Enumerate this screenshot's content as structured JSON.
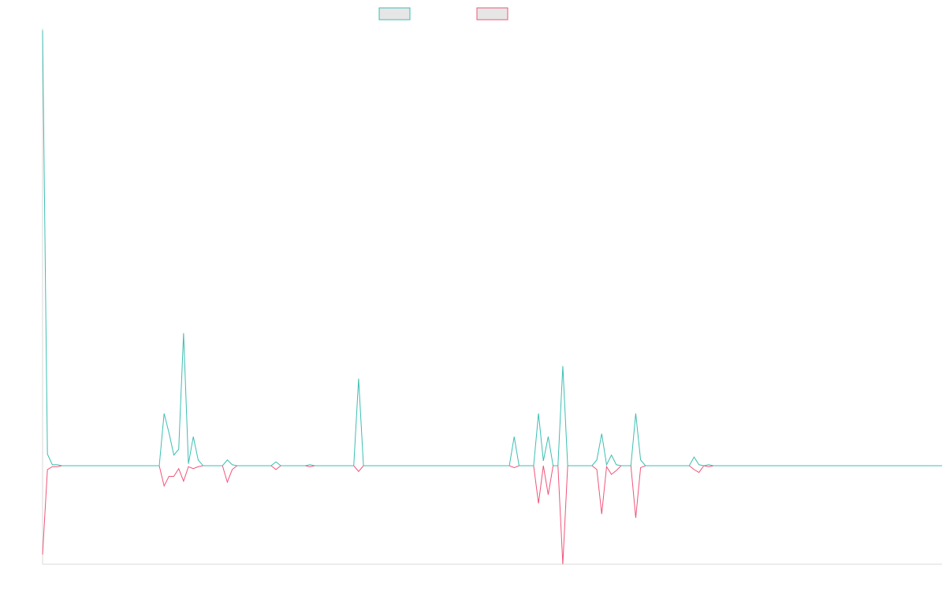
{
  "chart_data": {
    "type": "line",
    "title": "",
    "xlabel": "",
    "ylabel": "",
    "grid": false,
    "legend_position": "top-center",
    "x_count": 186,
    "ylim": [
      -10.2,
      45.2
    ],
    "series": [
      {
        "color": "#3cbfb2",
        "legend_fill": "#e6e6e6",
        "points": [
          [
            0,
            45.0
          ],
          [
            1,
            1.2
          ],
          [
            2,
            0.1
          ],
          [
            3,
            0.1
          ],
          [
            4,
            0
          ],
          [
            5,
            0
          ],
          [
            6,
            0
          ],
          [
            7,
            0
          ],
          [
            8,
            0
          ],
          [
            9,
            0
          ],
          [
            24,
            0
          ],
          [
            25,
            5.4
          ],
          [
            26,
            3.4
          ],
          [
            27,
            1.1
          ],
          [
            28,
            1.7
          ],
          [
            29,
            13.7
          ],
          [
            30,
            0.2
          ],
          [
            31,
            3.0
          ],
          [
            32,
            0.6
          ],
          [
            33,
            0
          ],
          [
            37,
            0
          ],
          [
            38,
            0.6
          ],
          [
            39,
            0.1
          ],
          [
            40,
            0
          ],
          [
            47,
            0
          ],
          [
            48,
            0.4
          ],
          [
            49,
            0
          ],
          [
            54,
            0
          ],
          [
            55,
            0.1
          ],
          [
            56,
            0
          ],
          [
            64,
            0
          ],
          [
            65,
            9.0
          ],
          [
            66,
            0
          ],
          [
            96,
            0
          ],
          [
            97,
            3.0
          ],
          [
            98,
            0
          ],
          [
            101,
            0
          ],
          [
            102,
            5.4
          ],
          [
            103,
            0.5
          ],
          [
            104,
            3.0
          ],
          [
            105,
            0
          ],
          [
            106,
            0
          ],
          [
            107,
            10.3
          ],
          [
            108,
            0
          ],
          [
            113,
            0
          ],
          [
            114,
            0.6
          ],
          [
            115,
            3.3
          ],
          [
            116,
            0.1
          ],
          [
            117,
            1.1
          ],
          [
            118,
            0.1
          ],
          [
            119,
            0
          ],
          [
            121,
            0
          ],
          [
            122,
            5.4
          ],
          [
            123,
            0.6
          ],
          [
            124,
            0
          ],
          [
            133,
            0
          ],
          [
            134,
            0.9
          ],
          [
            135,
            0.1
          ],
          [
            136,
            0
          ],
          [
            137,
            0.1
          ],
          [
            138,
            0
          ],
          [
            185,
            0
          ]
        ]
      },
      {
        "color": "#f0557a",
        "legend_fill": "#e6e6e6",
        "points": [
          [
            0,
            -9.2
          ],
          [
            1,
            -0.4
          ],
          [
            2,
            -0.1
          ],
          [
            3,
            -0.1
          ],
          [
            4,
            0
          ],
          [
            5,
            0
          ],
          [
            6,
            0
          ],
          [
            7,
            0
          ],
          [
            8,
            0
          ],
          [
            9,
            0
          ],
          [
            24,
            0
          ],
          [
            25,
            -2.1
          ],
          [
            26,
            -1.1
          ],
          [
            27,
            -1.1
          ],
          [
            28,
            -0.3
          ],
          [
            29,
            -1.6
          ],
          [
            30,
            -0.1
          ],
          [
            31,
            -0.3
          ],
          [
            32,
            -0.1
          ],
          [
            33,
            0
          ],
          [
            37,
            0
          ],
          [
            38,
            -1.7
          ],
          [
            39,
            -0.4
          ],
          [
            40,
            0
          ],
          [
            47,
            0
          ],
          [
            48,
            -0.4
          ],
          [
            49,
            0
          ],
          [
            54,
            0
          ],
          [
            55,
            -0.1
          ],
          [
            56,
            0
          ],
          [
            64,
            0
          ],
          [
            65,
            -0.6
          ],
          [
            66,
            0
          ],
          [
            96,
            0
          ],
          [
            97,
            -0.2
          ],
          [
            98,
            0
          ],
          [
            101,
            0
          ],
          [
            102,
            -3.9
          ],
          [
            103,
            0
          ],
          [
            104,
            -3.0
          ],
          [
            105,
            0
          ],
          [
            106,
            0
          ],
          [
            107,
            -10.2
          ],
          [
            108,
            0
          ],
          [
            113,
            0
          ],
          [
            114,
            -0.4
          ],
          [
            115,
            -5.0
          ],
          [
            116,
            -0.1
          ],
          [
            117,
            -0.9
          ],
          [
            118,
            -0.5
          ],
          [
            119,
            0
          ],
          [
            121,
            0
          ],
          [
            122,
            -5.4
          ],
          [
            123,
            -0.2
          ],
          [
            124,
            0
          ],
          [
            133,
            0
          ],
          [
            134,
            -0.4
          ],
          [
            135,
            -0.7
          ],
          [
            136,
            0
          ],
          [
            137,
            -0.1
          ],
          [
            138,
            0
          ],
          [
            185,
            0
          ]
        ]
      }
    ]
  }
}
